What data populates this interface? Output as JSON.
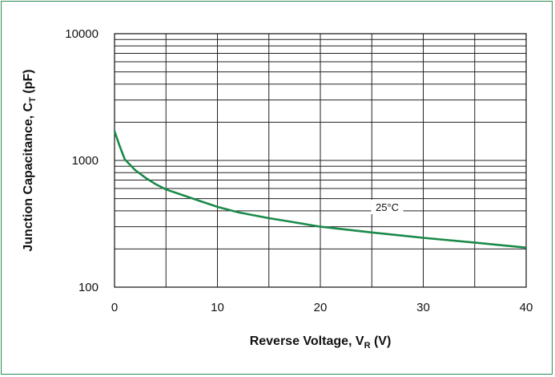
{
  "chart_data": {
    "type": "line",
    "title": "",
    "xlabel": {
      "main": "Reverse Voltage, V",
      "sub": "R",
      "unit": " (V)"
    },
    "ylabel": {
      "main": "Junction Capacitance, C",
      "sub": "T",
      "unit": " (pF)"
    },
    "x_scale": "linear",
    "y_scale": "log",
    "xlim": [
      0,
      40
    ],
    "ylim": [
      100,
      10000
    ],
    "x_ticks": [
      0,
      10,
      20,
      30,
      40
    ],
    "x_tick_labels": [
      "0",
      "10",
      "20",
      "30",
      "40"
    ],
    "y_ticks": [
      100,
      1000,
      10000
    ],
    "y_tick_labels": [
      "100",
      "1000",
      "10000"
    ],
    "grid": true,
    "series": [
      {
        "name": "",
        "color": "#1a8a4a",
        "x": [
          0,
          0.5,
          1,
          2,
          3,
          4,
          5,
          7,
          10,
          12,
          15,
          17,
          20,
          25,
          30,
          35,
          40
        ],
        "y": [
          1700,
          1300,
          1020,
          840,
          730,
          650,
          590,
          520,
          430,
          390,
          350,
          330,
          300,
          270,
          245,
          225,
          205
        ]
      }
    ],
    "annotations": [
      {
        "text": "25°C",
        "x": 26.5,
        "y": 430
      }
    ]
  }
}
